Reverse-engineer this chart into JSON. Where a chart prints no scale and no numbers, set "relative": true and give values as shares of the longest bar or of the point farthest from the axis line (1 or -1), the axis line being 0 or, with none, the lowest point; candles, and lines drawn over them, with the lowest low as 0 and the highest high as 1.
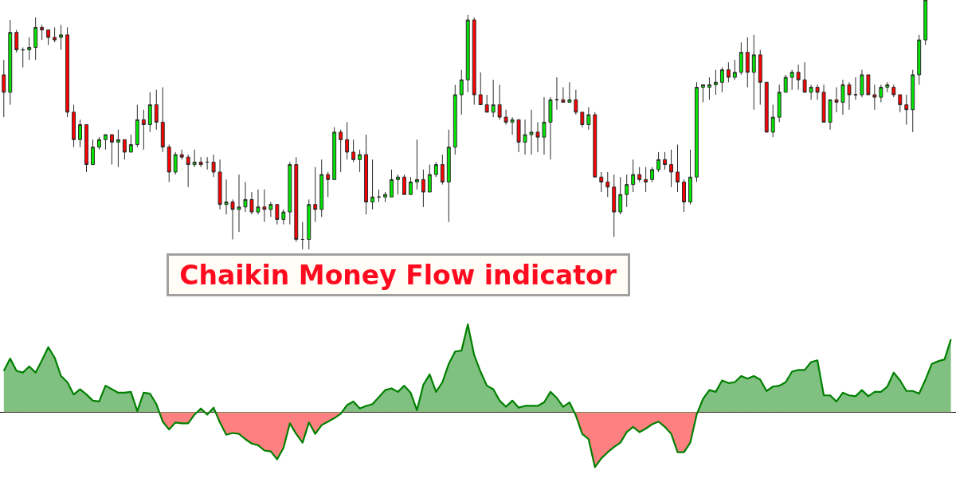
{
  "chart_data": [
    {
      "type": "candlestick",
      "relative": true,
      "categories": [
        null,
        null,
        null,
        null,
        null,
        null,
        null,
        null,
        null,
        null,
        null,
        null,
        null,
        null,
        null,
        null,
        null,
        null,
        null,
        null,
        null,
        null,
        null,
        null,
        null,
        null,
        null,
        null,
        null,
        null,
        null,
        null,
        null,
        null,
        null,
        null,
        null,
        null,
        null,
        null,
        null,
        null,
        null,
        null,
        null,
        null,
        null,
        null,
        null,
        null,
        null,
        null,
        null,
        null,
        null,
        null,
        null,
        null,
        null,
        null,
        null,
        null,
        null,
        null,
        null,
        null,
        null,
        null,
        null,
        null,
        null,
        null,
        null,
        null,
        null,
        null,
        null,
        null,
        null,
        null,
        null,
        null,
        null,
        null,
        null,
        null,
        null,
        null,
        null,
        null,
        null,
        null,
        null,
        null,
        null,
        null,
        null,
        null,
        null,
        null,
        null,
        null,
        null,
        null,
        null,
        null,
        null,
        null,
        null,
        null,
        null,
        null,
        null,
        null,
        null,
        null,
        null,
        null,
        null,
        null,
        null,
        null,
        null,
        null,
        null,
        null,
        null,
        null,
        null,
        null,
        null,
        null,
        null,
        null,
        null,
        null,
        null,
        null,
        null,
        null,
        null,
        null,
        null,
        null,
        null,
        null,
        null,
        null,
        null,
        null
      ],
      "ohlc": [
        [
          0.7,
          0.76,
          0.53,
          0.63
        ],
        [
          0.63,
          0.92,
          0.58,
          0.87
        ],
        [
          0.87,
          0.88,
          0.79,
          0.8
        ],
        [
          0.8,
          0.81,
          0.73,
          0.8
        ],
        [
          0.8,
          0.85,
          0.76,
          0.81
        ],
        [
          0.81,
          0.93,
          0.76,
          0.89
        ],
        [
          0.89,
          0.9,
          0.84,
          0.88
        ],
        [
          0.88,
          0.88,
          0.82,
          0.85
        ],
        [
          0.85,
          0.89,
          0.83,
          0.84
        ],
        [
          0.85,
          0.9,
          0.8,
          0.86
        ],
        [
          0.86,
          0.89,
          0.53,
          0.55
        ],
        [
          0.55,
          0.58,
          0.41,
          0.44
        ],
        [
          0.44,
          0.52,
          0.41,
          0.5
        ],
        [
          0.5,
          0.5,
          0.31,
          0.34
        ],
        [
          0.34,
          0.44,
          0.34,
          0.41
        ],
        [
          0.41,
          0.45,
          0.4,
          0.44
        ],
        [
          0.44,
          0.46,
          0.4,
          0.46
        ],
        [
          0.46,
          0.46,
          0.34,
          0.43
        ],
        [
          0.43,
          0.48,
          0.33,
          0.44
        ],
        [
          0.44,
          0.44,
          0.36,
          0.39
        ],
        [
          0.39,
          0.46,
          0.39,
          0.42
        ],
        [
          0.42,
          0.58,
          0.41,
          0.52
        ],
        [
          0.52,
          0.56,
          0.4,
          0.5
        ],
        [
          0.5,
          0.63,
          0.47,
          0.58
        ],
        [
          0.58,
          0.64,
          0.48,
          0.51
        ],
        [
          0.51,
          0.65,
          0.39,
          0.41
        ],
        [
          0.41,
          0.42,
          0.27,
          0.31
        ],
        [
          0.31,
          0.39,
          0.3,
          0.38
        ],
        [
          0.38,
          0.4,
          0.36,
          0.37
        ],
        [
          0.37,
          0.38,
          0.25,
          0.34
        ],
        [
          0.34,
          0.4,
          0.33,
          0.35
        ],
        [
          0.35,
          0.37,
          0.33,
          0.34
        ],
        [
          0.35,
          0.37,
          0.32,
          0.35
        ],
        [
          0.35,
          0.38,
          0.29,
          0.31
        ],
        [
          0.31,
          0.36,
          0.16,
          0.18
        ],
        [
          0.18,
          0.28,
          0.14,
          0.19
        ],
        [
          0.19,
          0.2,
          0.04,
          0.16
        ],
        [
          0.16,
          0.3,
          0.07,
          0.17
        ],
        [
          0.17,
          0.27,
          0.15,
          0.2
        ],
        [
          0.2,
          0.23,
          0.14,
          0.15
        ],
        [
          0.15,
          0.24,
          0.14,
          0.17
        ],
        [
          0.17,
          0.24,
          0.11,
          0.16
        ],
        [
          0.16,
          0.19,
          0.13,
          0.18
        ],
        [
          0.18,
          0.18,
          0.1,
          0.12
        ],
        [
          0.12,
          0.16,
          0.1,
          0.15
        ],
        [
          0.15,
          0.35,
          0.1,
          0.34
        ],
        [
          0.34,
          0.37,
          0.03,
          0.04
        ],
        [
          0.04,
          0.11,
          0.0,
          0.04
        ],
        [
          0.04,
          0.2,
          0.0,
          0.18
        ],
        [
          0.18,
          0.33,
          0.11,
          0.16
        ],
        [
          0.16,
          0.36,
          0.13,
          0.3
        ],
        [
          0.3,
          0.31,
          0.21,
          0.28
        ],
        [
          0.28,
          0.49,
          0.28,
          0.47
        ],
        [
          0.47,
          0.48,
          0.31,
          0.44
        ],
        [
          0.44,
          0.51,
          0.36,
          0.39
        ],
        [
          0.39,
          0.44,
          0.35,
          0.36
        ],
        [
          0.36,
          0.4,
          0.31,
          0.38
        ],
        [
          0.38,
          0.46,
          0.14,
          0.19
        ],
        [
          0.19,
          0.36,
          0.16,
          0.21
        ],
        [
          0.21,
          0.24,
          0.19,
          0.21
        ],
        [
          0.21,
          0.23,
          0.19,
          0.22
        ],
        [
          0.21,
          0.32,
          0.21,
          0.28
        ],
        [
          0.28,
          0.3,
          0.22,
          0.29
        ],
        [
          0.29,
          0.3,
          0.22,
          0.22
        ],
        [
          0.22,
          0.29,
          0.22,
          0.27
        ],
        [
          0.27,
          0.44,
          0.24,
          0.28
        ],
        [
          0.28,
          0.32,
          0.17,
          0.23
        ],
        [
          0.23,
          0.34,
          0.23,
          0.3
        ],
        [
          0.3,
          0.35,
          0.29,
          0.34
        ],
        [
          0.34,
          0.38,
          0.26,
          0.27
        ],
        [
          0.27,
          0.48,
          0.11,
          0.41
        ],
        [
          0.41,
          0.66,
          0.38,
          0.62
        ],
        [
          0.62,
          0.72,
          0.54,
          0.68
        ],
        [
          0.68,
          0.94,
          0.63,
          0.92
        ],
        [
          0.92,
          0.93,
          0.58,
          0.62
        ],
        [
          0.62,
          0.71,
          0.58,
          0.58
        ],
        [
          0.58,
          0.62,
          0.55,
          0.55
        ],
        [
          0.55,
          0.68,
          0.53,
          0.58
        ],
        [
          0.58,
          0.66,
          0.52,
          0.53
        ],
        [
          0.53,
          0.56,
          0.5,
          0.51
        ],
        [
          0.51,
          0.53,
          0.46,
          0.52
        ],
        [
          0.52,
          0.52,
          0.39,
          0.43
        ],
        [
          0.43,
          0.52,
          0.38,
          0.46
        ],
        [
          0.46,
          0.56,
          0.38,
          0.47
        ],
        [
          0.47,
          0.51,
          0.39,
          0.45
        ],
        [
          0.45,
          0.61,
          0.38,
          0.51
        ],
        [
          0.51,
          0.61,
          0.36,
          0.6
        ],
        [
          0.6,
          0.69,
          0.56,
          0.6
        ],
        [
          0.6,
          0.65,
          0.59,
          0.59
        ],
        [
          0.59,
          0.67,
          0.59,
          0.6
        ],
        [
          0.6,
          0.64,
          0.54,
          0.55
        ],
        [
          0.55,
          0.55,
          0.49,
          0.5
        ],
        [
          0.5,
          0.57,
          0.48,
          0.54
        ],
        [
          0.54,
          0.55,
          0.29,
          0.29
        ],
        [
          0.29,
          0.31,
          0.23,
          0.27
        ],
        [
          0.27,
          0.31,
          0.21,
          0.25
        ],
        [
          0.25,
          0.3,
          0.05,
          0.15
        ],
        [
          0.15,
          0.29,
          0.14,
          0.22
        ],
        [
          0.22,
          0.3,
          0.17,
          0.26
        ],
        [
          0.26,
          0.36,
          0.23,
          0.3
        ],
        [
          0.3,
          0.33,
          0.27,
          0.28
        ],
        [
          0.28,
          0.33,
          0.23,
          0.27
        ],
        [
          0.28,
          0.33,
          0.27,
          0.32
        ],
        [
          0.32,
          0.39,
          0.31,
          0.36
        ],
        [
          0.36,
          0.39,
          0.32,
          0.34
        ],
        [
          0.34,
          0.4,
          0.25,
          0.31
        ],
        [
          0.31,
          0.42,
          0.23,
          0.27
        ],
        [
          0.27,
          0.28,
          0.15,
          0.19
        ],
        [
          0.19,
          0.4,
          0.18,
          0.29
        ],
        [
          0.29,
          0.67,
          0.27,
          0.65
        ],
        [
          0.65,
          0.66,
          0.59,
          0.66
        ],
        [
          0.65,
          0.69,
          0.6,
          0.66
        ],
        [
          0.66,
          0.72,
          0.62,
          0.67
        ],
        [
          0.67,
          0.73,
          0.63,
          0.72
        ],
        [
          0.72,
          0.75,
          0.67,
          0.69
        ],
        [
          0.69,
          0.76,
          0.68,
          0.71
        ],
        [
          0.71,
          0.83,
          0.7,
          0.79
        ],
        [
          0.79,
          0.85,
          0.65,
          0.71
        ],
        [
          0.71,
          0.86,
          0.56,
          0.78
        ],
        [
          0.78,
          0.8,
          0.58,
          0.67
        ],
        [
          0.67,
          0.67,
          0.47,
          0.47
        ],
        [
          0.47,
          0.58,
          0.45,
          0.53
        ],
        [
          0.53,
          0.66,
          0.51,
          0.63
        ],
        [
          0.63,
          0.7,
          0.63,
          0.69
        ],
        [
          0.69,
          0.72,
          0.64,
          0.71
        ],
        [
          0.71,
          0.74,
          0.64,
          0.68
        ],
        [
          0.68,
          0.75,
          0.63,
          0.63
        ],
        [
          0.63,
          0.66,
          0.6,
          0.65
        ],
        [
          0.65,
          0.66,
          0.6,
          0.63
        ],
        [
          0.63,
          0.66,
          0.51,
          0.51
        ],
        [
          0.51,
          0.6,
          0.48,
          0.6
        ],
        [
          0.6,
          0.65,
          0.55,
          0.59
        ],
        [
          0.59,
          0.68,
          0.54,
          0.66
        ],
        [
          0.66,
          0.67,
          0.56,
          0.62
        ],
        [
          0.62,
          0.69,
          0.6,
          0.62
        ],
        [
          0.62,
          0.72,
          0.61,
          0.7
        ],
        [
          0.7,
          0.7,
          0.62,
          0.62
        ],
        [
          0.62,
          0.66,
          0.56,
          0.61
        ],
        [
          0.61,
          0.66,
          0.59,
          0.65
        ],
        [
          0.65,
          0.67,
          0.63,
          0.66
        ],
        [
          0.65,
          0.66,
          0.61,
          0.62
        ],
        [
          0.62,
          0.62,
          0.55,
          0.58
        ],
        [
          0.58,
          0.62,
          0.5,
          0.56
        ],
        [
          0.56,
          0.72,
          0.47,
          0.7
        ],
        [
          0.7,
          0.86,
          0.66,
          0.84
        ],
        [
          0.84,
          1.0,
          0.82,
          1.0
        ],
        null,
        null,
        null,
        null
      ],
      "colors": [
        "#ff0000",
        "#00e600",
        "#ff0000",
        "#2b2b2b",
        "#00e600",
        "#00e600",
        "#ff0000",
        "#ff0000",
        "#ff0000",
        "#00e600",
        "#ff0000",
        "#ff0000",
        "#00e600",
        "#ff0000",
        "#00e600",
        "#00e600",
        "#00e600",
        "#ff0000",
        "#00e600",
        "#ff0000",
        "#00e600",
        "#00e600",
        "#ff0000",
        "#00e600",
        "#ff0000",
        "#ff0000",
        "#ff0000",
        "#00e600",
        "#ff0000",
        "#ff0000",
        "#00e600",
        "#ff0000",
        "#2b2b2b",
        "#ff0000",
        "#ff0000",
        "#00e600",
        "#ff0000",
        "#00e600",
        "#00e600",
        "#ff0000",
        "#00e600",
        "#ff0000",
        "#00e600",
        "#ff0000",
        "#00e600",
        "#00e600",
        "#ff0000",
        "#2b2b2b",
        "#00e600",
        "#ff0000",
        "#00e600",
        "#ff0000",
        "#00e600",
        "#ff0000",
        "#ff0000",
        "#ff0000",
        "#00e600",
        "#ff0000",
        "#00e600",
        "#2b2b2b",
        "#00e600",
        "#00e600",
        "#00e600",
        "#ff0000",
        "#00e600",
        "#00e600",
        "#ff0000",
        "#00e600",
        "#00e600",
        "#ff0000",
        "#00e600",
        "#00e600",
        "#00e600",
        "#00e600",
        "#ff0000",
        "#ff0000",
        "#ff0000",
        "#00e600",
        "#ff0000",
        "#ff0000",
        "#00e600",
        "#ff0000",
        "#00e600",
        "#00e600",
        "#ff0000",
        "#00e600",
        "#00e600",
        "#2b2b2b",
        "#ff0000",
        "#00e600",
        "#ff0000",
        "#ff0000",
        "#00e600",
        "#ff0000",
        "#ff0000",
        "#ff0000",
        "#ff0000",
        "#00e600",
        "#00e600",
        "#00e600",
        "#ff0000",
        "#ff0000",
        "#00e600",
        "#00e600",
        "#ff0000",
        "#ff0000",
        "#ff0000",
        "#ff0000",
        "#00e600",
        "#00e600",
        "#00e600",
        "#00e600",
        "#00e600",
        "#00e600",
        "#ff0000",
        "#00e600",
        "#00e600",
        "#ff0000",
        "#00e600",
        "#ff0000",
        "#ff0000",
        "#00e600",
        "#00e600",
        "#00e600",
        "#00e600",
        "#ff0000",
        "#ff0000",
        "#00e600",
        "#ff0000",
        "#ff0000",
        "#00e600",
        "#ff0000",
        "#00e600",
        "#ff0000",
        "#2b2b2b",
        "#00e600",
        "#ff0000",
        "#ff0000",
        "#00e600",
        "#00e600",
        "#ff0000",
        "#ff0000",
        "#ff0000",
        "#00e600",
        "#00e600",
        "#00e600",
        null,
        null,
        null,
        null
      ]
    },
    {
      "type": "area",
      "relative": true,
      "title": "Chaikin Money Flow indicator",
      "categories": [
        null,
        null,
        null,
        null,
        null,
        null,
        null,
        null,
        null,
        null,
        null,
        null,
        null,
        null,
        null,
        null,
        null,
        null,
        null,
        null,
        null,
        null,
        null,
        null,
        null,
        null,
        null,
        null,
        null,
        null,
        null,
        null,
        null,
        null,
        null,
        null,
        null,
        null,
        null,
        null,
        null,
        null,
        null,
        null,
        null,
        null,
        null,
        null,
        null,
        null,
        null,
        null,
        null,
        null,
        null,
        null,
        null,
        null,
        null,
        null,
        null,
        null,
        null,
        null,
        null,
        null,
        null,
        null,
        null,
        null,
        null,
        null,
        null,
        null,
        null,
        null,
        null,
        null,
        null,
        null,
        null,
        null,
        null,
        null,
        null,
        null,
        null,
        null,
        null,
        null,
        null,
        null,
        null,
        null,
        null,
        null,
        null,
        null,
        null,
        null,
        null,
        null,
        null,
        null,
        null,
        null,
        null,
        null,
        null,
        null,
        null,
        null,
        null,
        null,
        null,
        null,
        null,
        null,
        null,
        null,
        null,
        null,
        null,
        null,
        null,
        null,
        null,
        null,
        null,
        null,
        null,
        null,
        null,
        null,
        null,
        null,
        null,
        null,
        null,
        null,
        null,
        null,
        null,
        null,
        null,
        null,
        null,
        null,
        null,
        null
      ],
      "series": [
        {
          "color": "#008000",
          "colors": [
            "#80c080",
            "#80c080",
            "#80c080",
            "#80c080",
            "#80c080",
            "#80c080",
            "#80c080",
            "#80c080",
            "#80c080",
            "#80c080",
            "#80c080",
            "#80c080",
            "#80c080",
            "#80c080",
            "#80c080",
            "#80c080",
            "#80c080",
            "#80c080",
            "#80c080",
            "#80c080",
            "#80c080",
            "#80c080",
            "#80c080",
            "#80c080",
            "#80c080",
            "#ff8080",
            "#ff8080",
            "#ff8080",
            "#ff8080",
            "#ff8080",
            "#ff8080",
            "#80c080",
            "#ff8080",
            "#80c080",
            "#ff8080",
            "#ff8080",
            "#ff8080",
            "#ff8080",
            "#ff8080",
            "#ff8080",
            "#ff8080",
            "#ff8080",
            "#ff8080",
            "#ff8080",
            "#ff8080",
            "#ff8080",
            "#ff8080",
            "#ff8080",
            "#ff8080",
            "#ff8080",
            "#ff8080",
            "#ff8080",
            "#ff8080",
            "#ff8080",
            "#80c080",
            "#80c080",
            "#80c080",
            "#80c080",
            "#80c080",
            "#80c080",
            "#80c080",
            "#80c080",
            "#80c080",
            "#80c080",
            "#80c080",
            "#80c080",
            "#80c080",
            "#80c080",
            "#80c080",
            "#80c080",
            "#80c080",
            "#80c080",
            "#80c080",
            "#80c080",
            "#80c080",
            "#80c080",
            "#80c080",
            "#80c080",
            "#80c080",
            "#80c080",
            "#80c080",
            "#80c080",
            "#80c080",
            "#80c080",
            "#80c080",
            "#80c080",
            "#80c080",
            "#80c080",
            "#80c080",
            "#80c080",
            "#ff8080",
            "#ff8080",
            "#ff8080",
            "#ff8080",
            "#ff8080",
            "#ff8080",
            "#ff8080",
            "#ff8080",
            "#ff8080",
            "#ff8080",
            "#ff8080",
            "#ff8080",
            "#ff8080",
            "#ff8080",
            "#ff8080",
            "#ff8080",
            "#ff8080",
            "#ff8080",
            "#ff8080",
            "#ff8080",
            "#80c080",
            "#80c080",
            "#80c080",
            "#80c080",
            "#80c080",
            "#80c080",
            "#80c080",
            "#80c080",
            "#80c080",
            "#80c080",
            "#80c080",
            "#80c080",
            "#80c080",
            "#80c080",
            "#80c080",
            "#80c080",
            "#80c080",
            "#80c080",
            "#80c080",
            "#80c080",
            "#80c080",
            "#80c080",
            "#80c080",
            "#80c080",
            "#80c080",
            "#80c080",
            "#80c080",
            "#80c080",
            "#80c080",
            "#80c080",
            "#80c080",
            "#80c080",
            "#80c080",
            "#80c080",
            "#80c080",
            "#80c080",
            "#80c080",
            "#80c080",
            "#80c080",
            "#80c080"
          ],
          "values": [
            0.47,
            0.61,
            0.47,
            0.45,
            0.52,
            0.45,
            0.59,
            0.74,
            0.62,
            0.41,
            0.34,
            0.2,
            0.26,
            0.2,
            0.13,
            0.12,
            0.3,
            0.26,
            0.22,
            0.22,
            0.23,
            0.01,
            0.22,
            0.21,
            0.09,
            -0.11,
            -0.2,
            -0.12,
            -0.13,
            -0.13,
            -0.03,
            0.04,
            -0.03,
            0.05,
            -0.12,
            -0.26,
            -0.24,
            -0.25,
            -0.31,
            -0.36,
            -0.38,
            -0.44,
            -0.45,
            -0.54,
            -0.41,
            -0.13,
            -0.25,
            -0.35,
            -0.12,
            -0.25,
            -0.15,
            -0.11,
            -0.07,
            -0.02,
            0.08,
            0.12,
            0.04,
            0.07,
            0.09,
            0.17,
            0.25,
            0.27,
            0.23,
            0.3,
            0.22,
            0.02,
            0.31,
            0.43,
            0.23,
            0.34,
            0.55,
            0.69,
            0.7,
            1.0,
            0.65,
            0.46,
            0.3,
            0.26,
            0.13,
            0.06,
            0.13,
            0.05,
            0.07,
            0.07,
            0.07,
            0.11,
            0.23,
            0.16,
            0.06,
            0.11,
            -0.04,
            -0.25,
            -0.31,
            -0.63,
            -0.53,
            -0.46,
            -0.4,
            -0.35,
            -0.23,
            -0.17,
            -0.23,
            -0.19,
            -0.14,
            -0.11,
            -0.17,
            -0.25,
            -0.46,
            -0.46,
            -0.35,
            -0.03,
            0.15,
            0.25,
            0.23,
            0.36,
            0.33,
            0.34,
            0.41,
            0.38,
            0.41,
            0.37,
            0.24,
            0.29,
            0.3,
            0.34,
            0.46,
            0.48,
            0.48,
            0.57,
            0.59,
            0.19,
            0.19,
            0.12,
            0.22,
            0.19,
            0.18,
            0.25,
            0.18,
            0.23,
            0.23,
            0.29,
            0.45,
            0.36,
            0.24,
            0.24,
            0.21,
            0.37,
            0.55,
            0.58,
            0.6,
            0.83
          ]
        }
      ]
    }
  ]
}
